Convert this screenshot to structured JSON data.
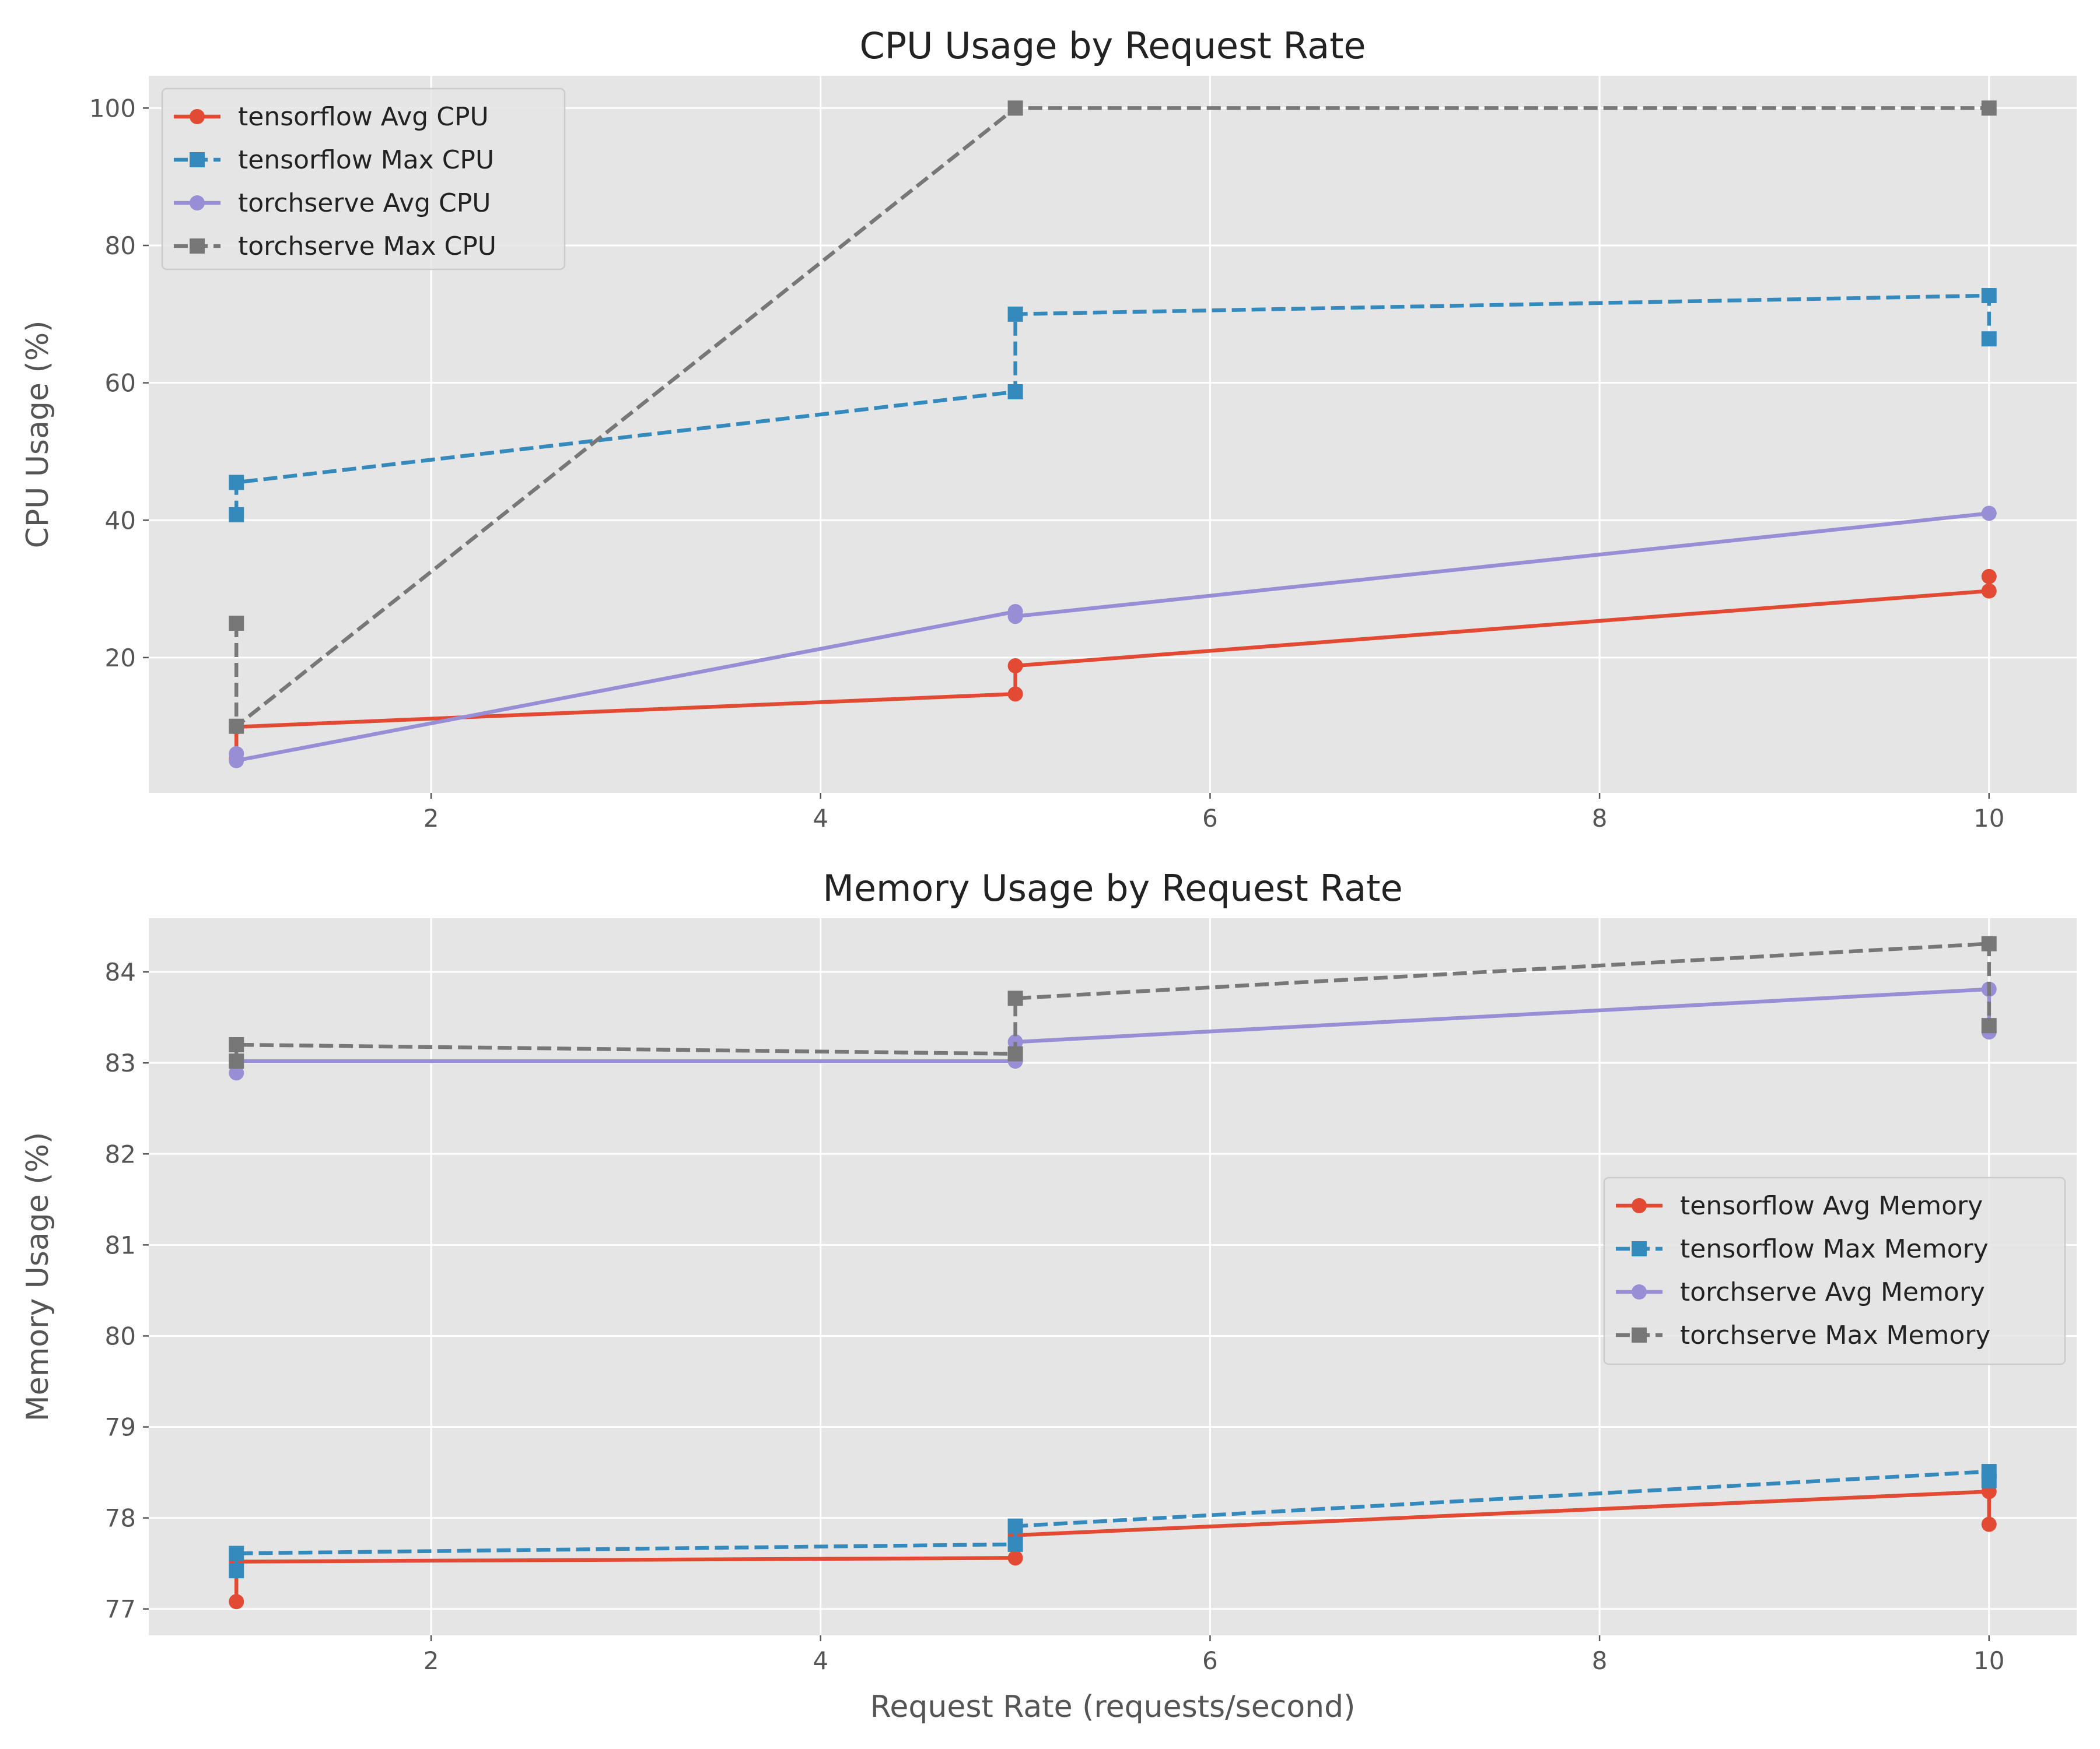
{
  "chart_data": [
    {
      "type": "line",
      "title": "CPU Usage by Request Rate",
      "xlabel": "",
      "ylabel": "CPU Usage (%)",
      "xlim": [
        0.55,
        10.45
      ],
      "ylim": [
        0.3,
        104.7
      ],
      "xticks": [
        2,
        4,
        6,
        8,
        10
      ],
      "yticks": [
        20,
        40,
        60,
        80,
        100
      ],
      "grid": true,
      "legend_position": "upper-left",
      "series": [
        {
          "name": "tensorflow Avg CPU",
          "color": "#E24A33",
          "style": "solid",
          "marker": "circle",
          "points": [
            [
              1,
              5.2
            ],
            [
              1,
              9.9
            ],
            [
              5,
              14.7
            ],
            [
              5,
              18.8
            ],
            [
              10,
              29.7
            ],
            [
              10,
              31.8
            ]
          ]
        },
        {
          "name": "tensorflow Max CPU",
          "color": "#348ABD",
          "style": "dashed",
          "marker": "square",
          "points": [
            [
              1,
              40.8
            ],
            [
              1,
              45.5
            ],
            [
              5,
              58.7
            ],
            [
              5,
              70.0
            ],
            [
              10,
              72.7
            ],
            [
              10,
              66.4
            ]
          ]
        },
        {
          "name": "torchserve Avg CPU",
          "color": "#988ED5",
          "style": "solid",
          "marker": "circle",
          "points": [
            [
              1,
              6.0
            ],
            [
              1,
              5.0
            ],
            [
              5,
              26.7
            ],
            [
              5,
              26.0
            ],
            [
              10,
              41.0
            ]
          ]
        },
        {
          "name": "torchserve Max CPU",
          "color": "#777777",
          "style": "dashed",
          "marker": "square",
          "points": [
            [
              1,
              25.0
            ],
            [
              1,
              10.0
            ],
            [
              5,
              100.0
            ],
            [
              10,
              100.0
            ]
          ]
        }
      ]
    },
    {
      "type": "line",
      "title": "Memory Usage by Request Rate",
      "xlabel": "Request Rate (requests/second)",
      "ylabel": "Memory Usage (%)",
      "xlim": [
        0.55,
        10.45
      ],
      "ylim": [
        76.71,
        84.59
      ],
      "xticks": [
        2,
        4,
        6,
        8,
        10
      ],
      "yticks": [
        77,
        78,
        79,
        80,
        81,
        82,
        83,
        84
      ],
      "grid": true,
      "legend_position": "center-right",
      "series": [
        {
          "name": "tensorflow Avg Memory",
          "color": "#E24A33",
          "style": "solid",
          "marker": "circle",
          "points": [
            [
              1,
              77.08
            ],
            [
              1,
              77.52
            ],
            [
              5,
              77.56
            ],
            [
              5,
              77.81
            ],
            [
              10,
              78.29
            ],
            [
              10,
              77.93
            ]
          ]
        },
        {
          "name": "tensorflow Max Memory",
          "color": "#348ABD",
          "style": "dashed",
          "marker": "square",
          "points": [
            [
              1,
              77.42
            ],
            [
              1,
              77.61
            ],
            [
              5,
              77.71
            ],
            [
              5,
              77.91
            ],
            [
              10,
              78.51
            ],
            [
              10,
              78.41
            ]
          ]
        },
        {
          "name": "torchserve Avg Memory",
          "color": "#988ED5",
          "style": "solid",
          "marker": "circle",
          "points": [
            [
              1,
              82.89
            ],
            [
              1,
              83.02
            ],
            [
              5,
              83.02
            ],
            [
              5,
              83.23
            ],
            [
              10,
              83.81
            ],
            [
              10,
              83.34
            ]
          ]
        },
        {
          "name": "torchserve Max Memory",
          "color": "#777777",
          "style": "dashed",
          "marker": "square",
          "points": [
            [
              1,
              83.02
            ],
            [
              1,
              83.2
            ],
            [
              5,
              83.1
            ],
            [
              5,
              83.71
            ],
            [
              10,
              84.31
            ],
            [
              10,
              83.41
            ]
          ]
        }
      ]
    }
  ]
}
